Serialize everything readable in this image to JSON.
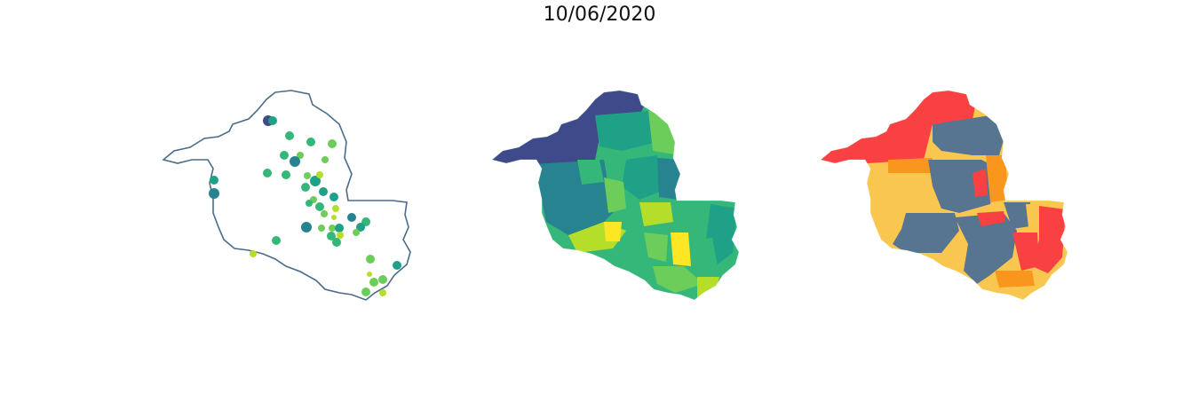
{
  "figure": {
    "title": "10/06/2020"
  },
  "colors": {
    "outline": "#4a6b8a",
    "viridis_dark": "#3e4a89",
    "viridis_teal": "#26838f",
    "viridis_green": "#1fa187",
    "viridis_mid": "#35b779",
    "viridis_light": "#6ccd5a",
    "viridis_lime": "#b5de2b",
    "viridis_yellow": "#fde725",
    "cat_red": "#f94144",
    "cat_orange": "#f8961e",
    "cat_yellow": "#f9c74f",
    "cat_slate": "#577590"
  },
  "panels": [
    {
      "id": "point-map",
      "kind": "proportional-points"
    },
    {
      "id": "choropleth-viridis",
      "kind": "choropleth"
    },
    {
      "id": "choropleth-categorical",
      "kind": "categorical-choropleth"
    }
  ]
}
